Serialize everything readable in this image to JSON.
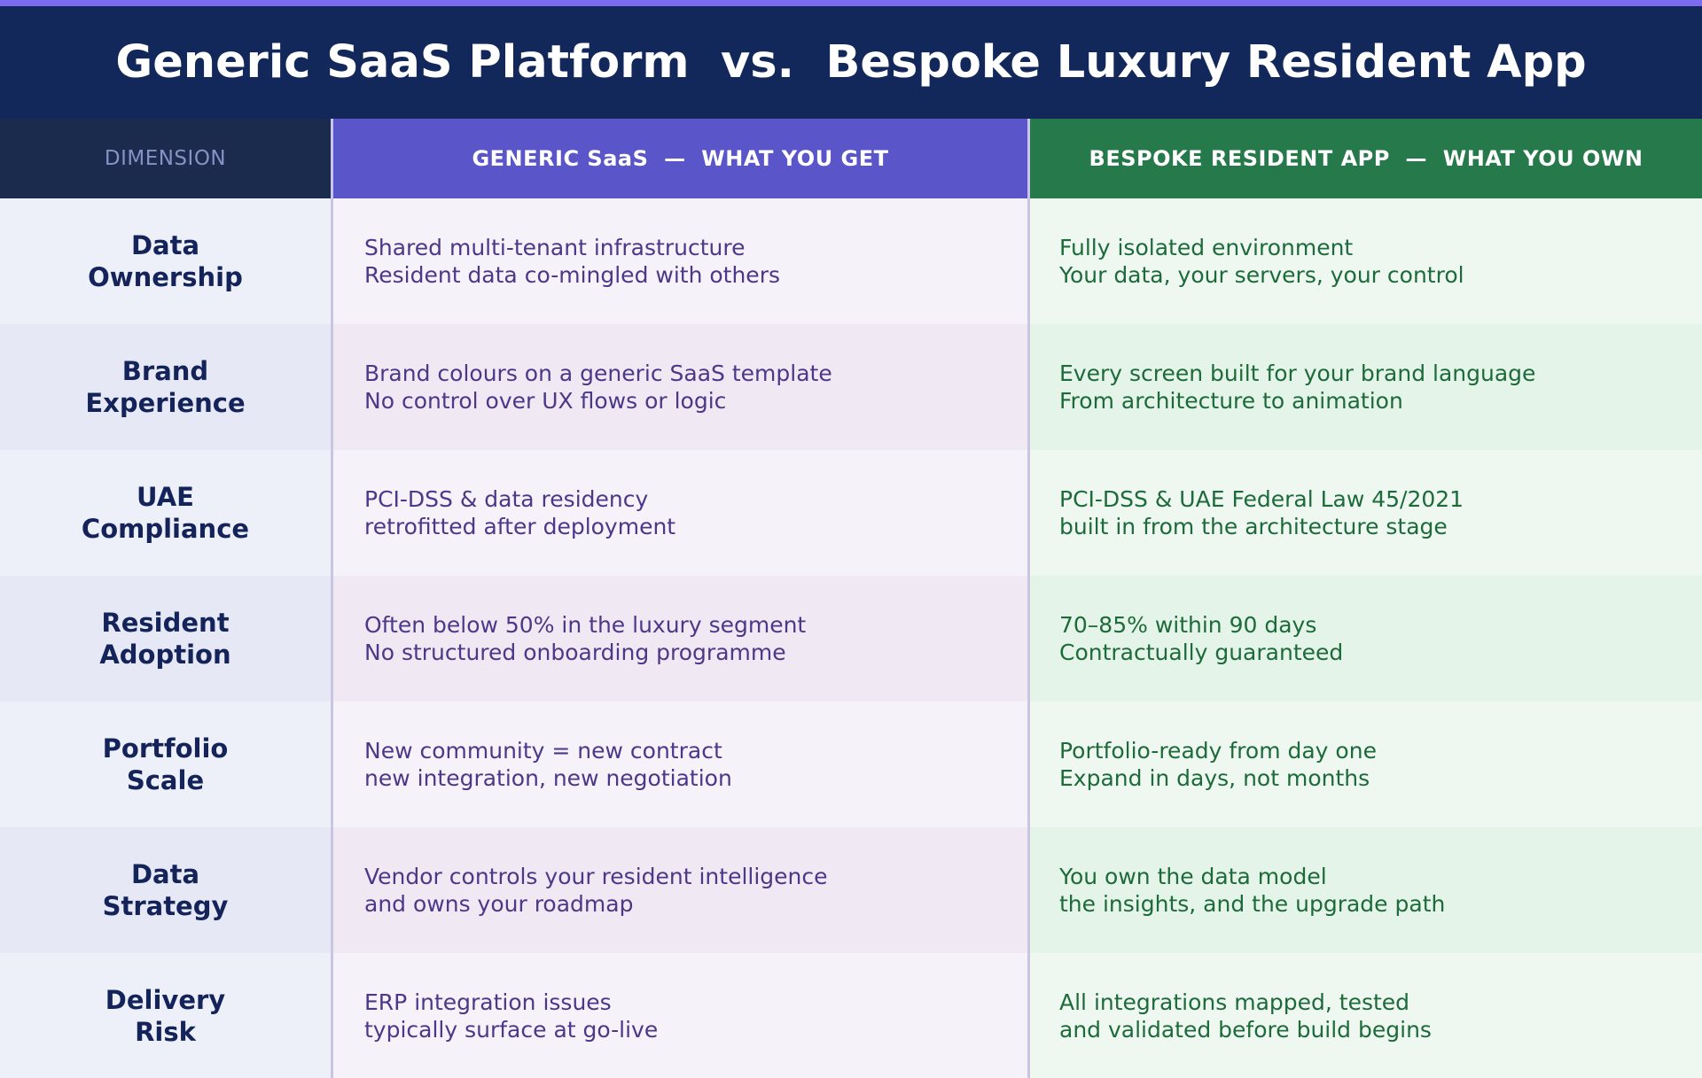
{
  "title": "Generic SaaS Platform  vs.  Bespoke Luxury Resident App",
  "headers": {
    "dimension": "DIMENSION",
    "generic": "GENERIC SaaS  —  WHAT YOU GET",
    "bespoke": "BESPOKE RESIDENT APP  —  WHAT YOU OWN"
  },
  "rows": [
    {
      "dim": [
        "Data",
        "Ownership"
      ],
      "generic": [
        "Shared multi-tenant infrastructure",
        "Resident data co-mingled with others"
      ],
      "bespoke": [
        "Fully isolated environment",
        "Your data, your servers, your control"
      ]
    },
    {
      "dim": [
        "Brand",
        "Experience"
      ],
      "generic": [
        "Brand colours on a generic SaaS template",
        "No control over UX flows or logic"
      ],
      "bespoke": [
        "Every screen built for your brand language",
        "From architecture to animation"
      ]
    },
    {
      "dim": [
        "UAE",
        "Compliance"
      ],
      "generic": [
        "PCI-DSS & data residency",
        "retrofitted after deployment"
      ],
      "bespoke": [
        "PCI-DSS & UAE Federal Law 45/2021",
        "built in from the architecture stage"
      ]
    },
    {
      "dim": [
        "Resident",
        "Adoption"
      ],
      "generic": [
        "Often below 50% in the luxury segment",
        "No structured onboarding programme"
      ],
      "bespoke": [
        "70–85% within 90 days",
        "Contractually guaranteed"
      ]
    },
    {
      "dim": [
        "Portfolio",
        "Scale"
      ],
      "generic": [
        "New community = new contract",
        "new integration, new negotiation"
      ],
      "bespoke": [
        "Portfolio-ready from day one",
        "Expand in days, not months"
      ]
    },
    {
      "dim": [
        "Data",
        "Strategy"
      ],
      "generic": [
        "Vendor controls your resident intelligence",
        "and owns your roadmap"
      ],
      "bespoke": [
        "You own the data model",
        "the insights, and the upgrade path"
      ]
    },
    {
      "dim": [
        "Delivery",
        "Risk"
      ],
      "generic": [
        "ERP integration issues",
        "typically surface at go-live"
      ],
      "bespoke": [
        "All integrations mapped, tested",
        "and validated before build begins"
      ]
    }
  ]
}
